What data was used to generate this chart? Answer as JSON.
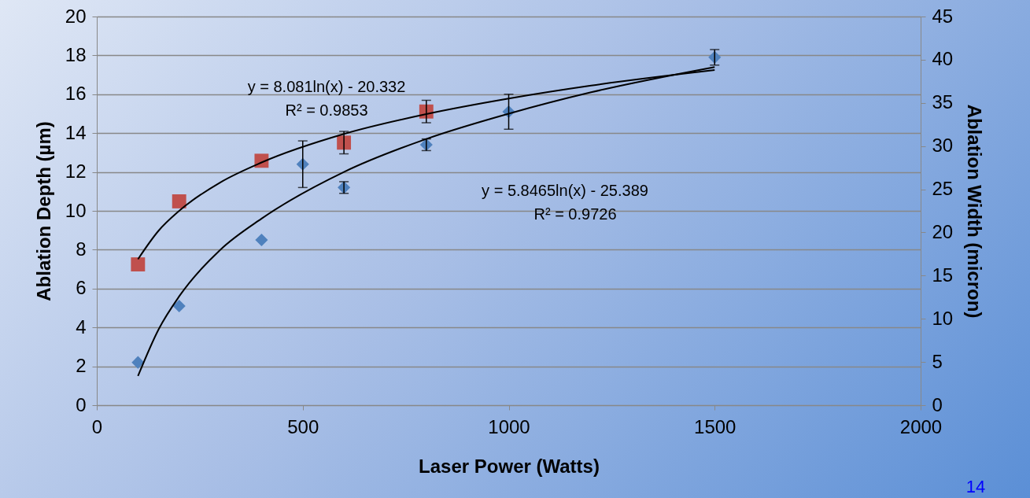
{
  "chart_data": {
    "type": "scatter",
    "xlabel": "Laser Power (Watts)",
    "ylabel": "Ablation Depth (µm)",
    "y2label": "Ablation Width (micron)",
    "xlim": [
      0,
      2000
    ],
    "xticks": [
      0,
      500,
      1000,
      1500,
      2000
    ],
    "ylim": [
      0,
      20
    ],
    "yticks": [
      0,
      2,
      4,
      6,
      8,
      10,
      12,
      14,
      16,
      18,
      20
    ],
    "y2lim": [
      0,
      45
    ],
    "y2ticks": [
      0,
      5,
      10,
      15,
      20,
      25,
      30,
      35,
      40,
      45
    ],
    "grid": "y",
    "series": [
      {
        "color": "#4f81bd",
        "marker": "diamond",
        "x": [
          100,
          200,
          400,
          500,
          600,
          800,
          1000,
          1500
        ],
        "values": [
          2.2,
          5.1,
          8.5,
          12.4,
          11.2,
          13.4,
          15.1,
          17.9
        ],
        "errors": [
          null,
          null,
          null,
          1.2,
          0.3,
          0.3,
          0.9,
          0.4
        ]
      },
      {
        "axis": "y2",
        "color": "#c0504d",
        "marker": "square",
        "x": [
          100,
          200,
          400,
          600,
          800
        ],
        "values": [
          16.3,
          23.6,
          28.3,
          30.4,
          34.0
        ],
        "errors": [
          null,
          null,
          null,
          1.3,
          1.3
        ]
      },
      {
        "type": "line",
        "axis": "y2",
        "color": "#000000",
        "line_style": "solid",
        "x": [
          100,
          150,
          200,
          300,
          400,
          600,
          800,
          1000,
          1200,
          1500
        ],
        "values": [
          16.9,
          20.2,
          22.5,
          25.8,
          28.1,
          31.4,
          33.7,
          35.5,
          37.0,
          38.8
        ]
      },
      {
        "type": "line",
        "color": "#000000",
        "line_style": "solid",
        "x": [
          100,
          150,
          200,
          300,
          400,
          600,
          800,
          1000,
          1200,
          1500
        ],
        "values": [
          1.5,
          3.9,
          5.6,
          8.0,
          9.6,
          12.0,
          13.7,
          15.0,
          16.1,
          17.4
        ]
      }
    ],
    "annotations": [
      "y = 8.081ln(x) - 20.332",
      "R² = 0.9853",
      "y = 5.8465ln(x) - 25.389",
      "R² = 0.9726",
      "14"
    ]
  }
}
